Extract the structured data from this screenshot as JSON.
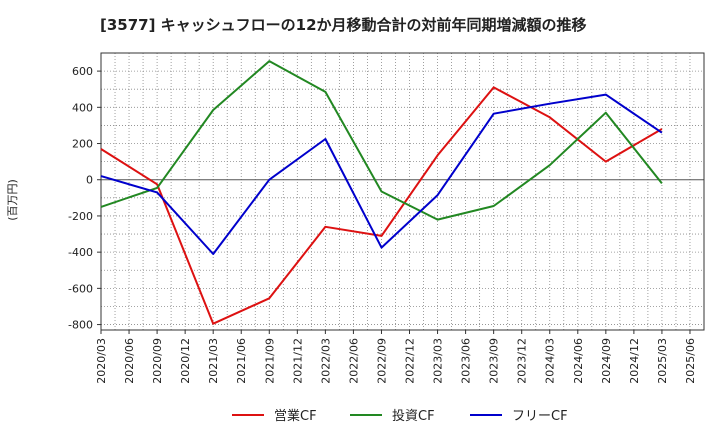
{
  "chart_data": {
    "type": "line",
    "title": "[3577]  キャッシュフローの12か月移動合計の対前年同期増減額の推移",
    "ylabel": "(百万円)",
    "xlabel": "",
    "ylim": [
      -830,
      700
    ],
    "yticks": [
      600,
      400,
      200,
      0,
      -200,
      -400,
      -600,
      -800
    ],
    "categories": [
      "2020/03",
      "2020/06",
      "2020/09",
      "2020/12",
      "2021/03",
      "2021/06",
      "2021/09",
      "2021/12",
      "2022/03",
      "2022/06",
      "2022/09",
      "2022/12",
      "2023/03",
      "2023/06",
      "2023/09",
      "2023/12",
      "2024/03",
      "2024/06",
      "2024/09",
      "2024/12",
      "2025/03",
      "2025/06"
    ],
    "grid": true,
    "legend_position": "bottom",
    "series": [
      {
        "name": "営業CF",
        "color": "#dd1111",
        "points": [
          [
            "2020/03",
            170
          ],
          [
            "2020/09",
            -25
          ],
          [
            "2021/03",
            -795
          ],
          [
            "2021/09",
            -655
          ],
          [
            "2022/03",
            -260
          ],
          [
            "2022/09",
            -310
          ],
          [
            "2023/03",
            135
          ],
          [
            "2023/09",
            510
          ],
          [
            "2024/03",
            345
          ],
          [
            "2024/09",
            100
          ],
          [
            "2025/03",
            280
          ]
        ]
      },
      {
        "name": "投資CF",
        "color": "#228822",
        "points": [
          [
            "2020/03",
            -150
          ],
          [
            "2020/09",
            -45
          ],
          [
            "2021/03",
            385
          ],
          [
            "2021/09",
            655
          ],
          [
            "2022/03",
            485
          ],
          [
            "2022/09",
            -65
          ],
          [
            "2023/03",
            -220
          ],
          [
            "2023/09",
            -145
          ],
          [
            "2024/03",
            80
          ],
          [
            "2024/09",
            370
          ],
          [
            "2025/03",
            -20
          ]
        ]
      },
      {
        "name": "フリーCF",
        "color": "#0000cc",
        "points": [
          [
            "2020/03",
            20
          ],
          [
            "2020/09",
            -70
          ],
          [
            "2021/03",
            -410
          ],
          [
            "2021/09",
            0
          ],
          [
            "2022/03",
            225
          ],
          [
            "2022/09",
            -375
          ],
          [
            "2023/03",
            -85
          ],
          [
            "2023/09",
            365
          ],
          [
            "2024/03",
            420
          ],
          [
            "2024/09",
            470
          ],
          [
            "2025/03",
            260
          ]
        ]
      }
    ]
  }
}
